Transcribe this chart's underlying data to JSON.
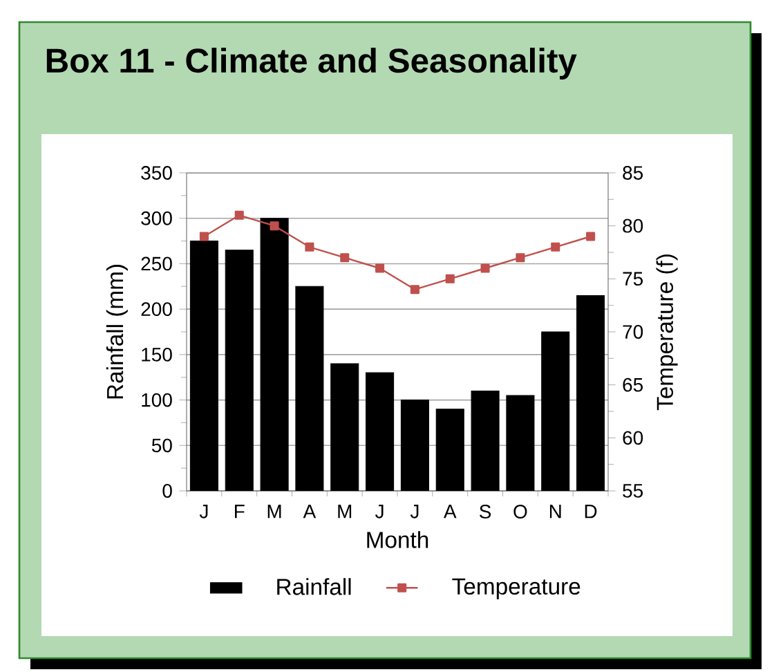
{
  "chart_data": {
    "type": "bar",
    "title": "Box 11 - Climate and Seasonality",
    "xlabel": "Month",
    "ylabel": "Rainfall (mm)",
    "y2label": "Temperature (f)",
    "categories": [
      "J",
      "F",
      "M",
      "A",
      "M",
      "J",
      "J",
      "A",
      "S",
      "O",
      "N",
      "D"
    ],
    "series": [
      {
        "name": "Rainfall",
        "color": "#000000",
        "values": [
          275,
          265,
          300,
          225,
          140,
          130,
          100,
          90,
          110,
          105,
          175,
          215
        ]
      },
      {
        "name": "Temperature",
        "type": "line",
        "axis": "y2",
        "color": "#c0504d",
        "marker": "square",
        "values": [
          79,
          81,
          80,
          78,
          77,
          76,
          74,
          75,
          76,
          77,
          78,
          79
        ]
      }
    ],
    "ylim": [
      0,
      350
    ],
    "yticks": [
      0,
      50,
      100,
      150,
      200,
      250,
      300,
      350
    ],
    "y2lim": [
      55,
      85
    ],
    "y2ticks": [
      55,
      60,
      65,
      70,
      75,
      80,
      85
    ],
    "grid": "y",
    "legend": "bottom"
  }
}
